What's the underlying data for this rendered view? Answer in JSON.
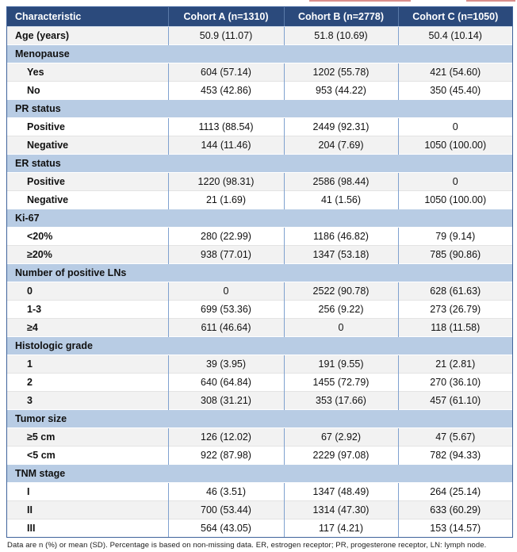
{
  "table": {
    "columns": [
      "Characteristic",
      "Cohort A (n=1310)",
      "Cohort B (n=2778)",
      "Cohort C (n=1050)"
    ],
    "rows": [
      {
        "type": "data",
        "label": "Age (years)",
        "indent": 0,
        "values": [
          "50.9 (11.07)",
          "51.8 (10.69)",
          "50.4 (10.14)"
        ]
      },
      {
        "type": "section",
        "label": "Menopause"
      },
      {
        "type": "data",
        "label": "Yes",
        "indent": 1,
        "values": [
          "604 (57.14)",
          "1202 (55.78)",
          "421 (54.60)"
        ]
      },
      {
        "type": "data",
        "label": "No",
        "indent": 1,
        "values": [
          "453 (42.86)",
          "953 (44.22)",
          "350 (45.40)"
        ]
      },
      {
        "type": "section",
        "label": "PR status"
      },
      {
        "type": "data",
        "label": "Positive",
        "indent": 1,
        "values": [
          "1113 (88.54)",
          "2449 (92.31)",
          "0"
        ]
      },
      {
        "type": "data",
        "label": "Negative",
        "indent": 1,
        "values": [
          "144 (11.46)",
          "204 (7.69)",
          "1050 (100.00)"
        ]
      },
      {
        "type": "section",
        "label": "ER status"
      },
      {
        "type": "data",
        "label": "Positive",
        "indent": 1,
        "values": [
          "1220 (98.31)",
          "2586 (98.44)",
          "0"
        ]
      },
      {
        "type": "data",
        "label": "Negative",
        "indent": 1,
        "values": [
          "21 (1.69)",
          "41 (1.56)",
          "1050 (100.00)"
        ]
      },
      {
        "type": "section",
        "label": "Ki-67"
      },
      {
        "type": "data",
        "label": "<20%",
        "indent": 1,
        "values": [
          "280 (22.99)",
          "1186 (46.82)",
          "79 (9.14)"
        ]
      },
      {
        "type": "data",
        "label": "≥20%",
        "indent": 1,
        "values": [
          "938 (77.01)",
          "1347 (53.18)",
          "785 (90.86)"
        ]
      },
      {
        "type": "section",
        "label": "Number of positive LNs"
      },
      {
        "type": "data",
        "label": "0",
        "indent": 1,
        "values": [
          "0",
          "2522 (90.78)",
          "628 (61.63)"
        ]
      },
      {
        "type": "data",
        "label": "1-3",
        "indent": 1,
        "values": [
          "699 (53.36)",
          "256 (9.22)",
          "273 (26.79)"
        ]
      },
      {
        "type": "data",
        "label": "≥4",
        "indent": 1,
        "values": [
          "611 (46.64)",
          "0",
          "118 (11.58)"
        ]
      },
      {
        "type": "section",
        "label": "Histologic grade"
      },
      {
        "type": "data",
        "label": "1",
        "indent": 1,
        "values": [
          "39 (3.95)",
          "191 (9.55)",
          "21 (2.81)"
        ]
      },
      {
        "type": "data",
        "label": "2",
        "indent": 1,
        "values": [
          "640 (64.84)",
          "1455 (72.79)",
          "270 (36.10)"
        ]
      },
      {
        "type": "data",
        "label": "3",
        "indent": 1,
        "values": [
          "308 (31.21)",
          "353 (17.66)",
          "457 (61.10)"
        ]
      },
      {
        "type": "section",
        "label": "Tumor size"
      },
      {
        "type": "data",
        "label": "≥5 cm",
        "indent": 1,
        "values": [
          "126 (12.02)",
          "67 (2.92)",
          "47 (5.67)"
        ]
      },
      {
        "type": "data",
        "label": "<5 cm",
        "indent": 1,
        "values": [
          "922 (87.98)",
          "2229 (97.08)",
          "782 (94.33)"
        ]
      },
      {
        "type": "section",
        "label": "TNM stage"
      },
      {
        "type": "data",
        "label": "I",
        "indent": 1,
        "values": [
          "46 (3.51)",
          "1347 (48.49)",
          "264 (25.14)"
        ]
      },
      {
        "type": "data",
        "label": "II",
        "indent": 1,
        "values": [
          "700 (53.44)",
          "1314 (47.30)",
          "633 (60.29)"
        ]
      },
      {
        "type": "data",
        "label": "III",
        "indent": 1,
        "values": [
          "564 (43.05)",
          "117 (4.21)",
          "153 (14.57)"
        ]
      }
    ],
    "footnote": "Data are n (%) or mean (SD). Percentage is based on non-missing data. ER, estrogen receptor; PR, progesterone receptor, LN: lymph node."
  },
  "colors": {
    "header_bg": "#2b4a7c",
    "section_bg": "#b8cce4",
    "stripe_bg": "#f2f2f2",
    "divider_blue": "#7fa1cf",
    "outer_border": "#3f639b",
    "header_divider": "#5a7aa8",
    "row_line": "#e3e3e3",
    "artifact_red": "#cc6a66"
  }
}
